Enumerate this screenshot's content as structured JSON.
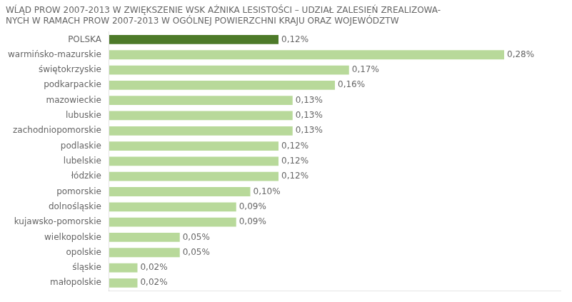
{
  "chart_data": {
    "type": "bar",
    "orientation": "horizontal",
    "title": "WĹĄD PROW 2007-2013 W ZWIĘKSZENIE WSK AŹNIKA LESISTOŚCI – UDZIAŁ ZALESIEŃ ZREALIZOWA-\nNYCH W RAMACH PROW 2007-2013 W OGÓLNEJ POWIERZCHNI KRAJU ORAZ WOJEWÓDZTW",
    "categories": [
      "małopolskie",
      "śląskie",
      "opolskie",
      "wielkopolskie",
      "kujawsko-pomorskie",
      "dolnośląskie",
      "pomorskie",
      "łódzkie",
      "lubelskie",
      "podlaskie",
      "zachodniopomorskie",
      "lubuskie",
      "mazowieckie",
      "podkarpackie",
      "świętokrzyskie",
      "warmińsko-mazurskie",
      "POLSKA"
    ],
    "values": [
      0.02,
      0.02,
      0.05,
      0.05,
      0.09,
      0.09,
      0.1,
      0.12,
      0.12,
      0.12,
      0.13,
      0.13,
      0.13,
      0.16,
      0.17,
      0.28,
      0.12
    ],
    "value_labels": [
      "0,02%",
      "0,02%",
      "0,05%",
      "0,05%",
      "0,09%",
      "0,09%",
      "0,10%",
      "0,12%",
      "0,12%",
      "0,12%",
      "0,13%",
      "0,13%",
      "0,13%",
      "0,16%",
      "0,17%",
      "0,28%",
      "0,12%"
    ],
    "data_labels": true,
    "colors": [
      "#b8d99a",
      "#b8d99a",
      "#b8d99a",
      "#b8d99a",
      "#b8d99a",
      "#b8d99a",
      "#b8d99a",
      "#b8d99a",
      "#b8d99a",
      "#b8d99a",
      "#b8d99a",
      "#b8d99a",
      "#b8d99a",
      "#b8d99a",
      "#b8d99a",
      "#b8d99a",
      "#4d7a29"
    ],
    "xlim": [
      0,
      0.32
    ],
    "tick_labels": "y",
    "grid": false
  }
}
